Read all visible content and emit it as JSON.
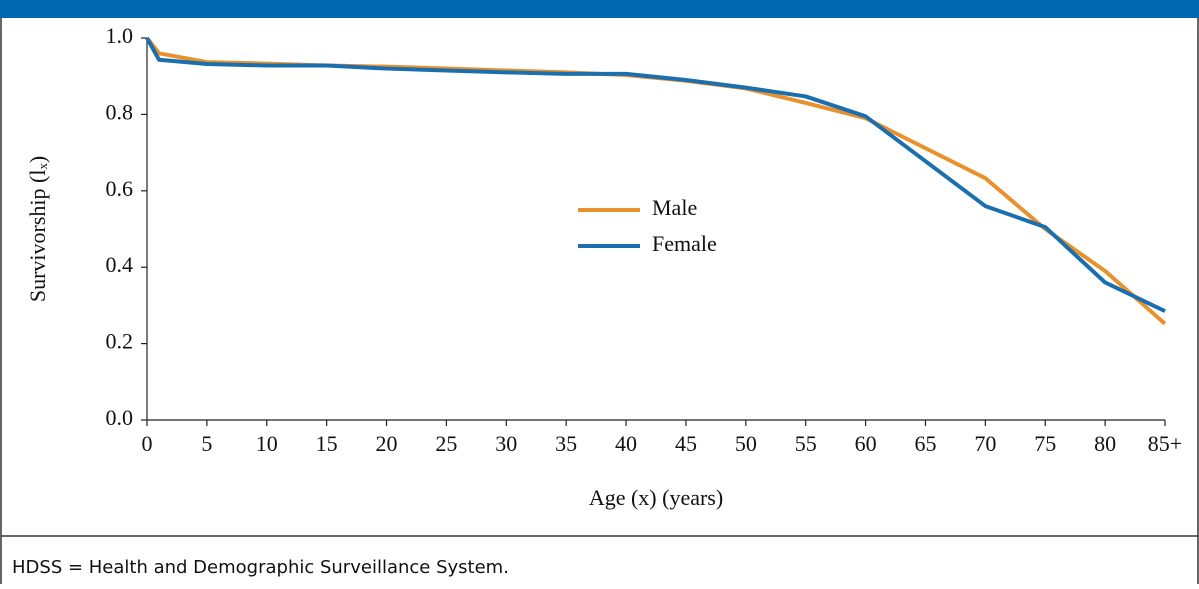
{
  "chart_data": {
    "type": "line",
    "xlabel": "Age (x) (years)",
    "ylabel": "Survivorship (lₓ)",
    "footnote": "HDSS = Health and Demographic Surveillance System.",
    "xlim": [
      0,
      85
    ],
    "xticks": [
      0,
      5,
      10,
      15,
      20,
      25,
      30,
      35,
      40,
      45,
      50,
      55,
      60,
      65,
      70,
      75,
      80,
      {
        "value": 85,
        "label": "85+"
      }
    ],
    "ylim": [
      0,
      1
    ],
    "yticks": [
      {
        "value": 0,
        "label": "0.0"
      },
      0.2,
      0.4,
      0.6,
      0.8,
      {
        "value": 1,
        "label": "1.0"
      }
    ],
    "legend": "center",
    "series": [
      {
        "name": "Male",
        "color": "#e8922e",
        "x": [
          0,
          1,
          5,
          10,
          15,
          20,
          25,
          30,
          35,
          40,
          45,
          50,
          55,
          60,
          70,
          75,
          80,
          85
        ],
        "values": [
          1.0,
          0.96,
          0.937,
          0.933,
          0.928,
          0.925,
          0.92,
          0.915,
          0.91,
          0.903,
          0.888,
          0.868,
          0.83,
          0.79,
          0.633,
          0.5,
          0.39,
          0.252
        ]
      },
      {
        "name": "Female",
        "color": "#1b6fae",
        "x": [
          0,
          1,
          5,
          10,
          15,
          20,
          25,
          30,
          35,
          40,
          45,
          50,
          55,
          60,
          70,
          75,
          80,
          85
        ],
        "values": [
          1.0,
          0.943,
          0.932,
          0.928,
          0.928,
          0.92,
          0.915,
          0.91,
          0.906,
          0.906,
          0.89,
          0.87,
          0.847,
          0.795,
          0.56,
          0.505,
          0.36,
          0.285
        ]
      }
    ]
  }
}
